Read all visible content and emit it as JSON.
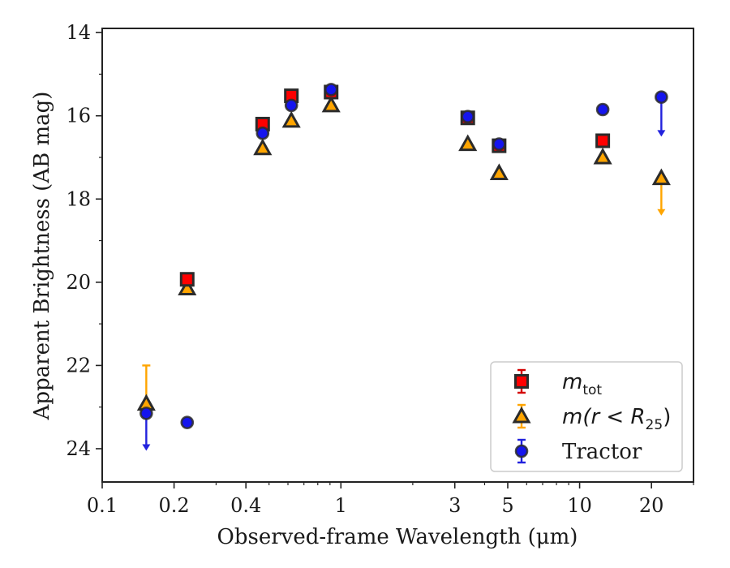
{
  "chart_data": {
    "type": "scatter",
    "xlabel": "Observed-frame Wavelength (μm)",
    "ylabel": "Apparent Brightness (AB mag)",
    "xscale": "log",
    "xlim": [
      0.1,
      30
    ],
    "ylim": [
      24.8,
      13.9
    ],
    "y_inverted": true,
    "xticks": [
      {
        "value": 0.1,
        "label": "0.1"
      },
      {
        "value": 0.2,
        "label": "0.2"
      },
      {
        "value": 0.4,
        "label": "0.4"
      },
      {
        "value": 1,
        "label": "1"
      },
      {
        "value": 3,
        "label": "3"
      },
      {
        "value": 5,
        "label": "5"
      },
      {
        "value": 10,
        "label": "10"
      },
      {
        "value": 20,
        "label": "20"
      }
    ],
    "yticks": [
      {
        "value": 14,
        "label": "14"
      },
      {
        "value": 16,
        "label": "16"
      },
      {
        "value": 18,
        "label": "18"
      },
      {
        "value": 20,
        "label": "20"
      },
      {
        "value": 22,
        "label": "22"
      },
      {
        "value": 24,
        "label": "24"
      }
    ],
    "legend_position": "lower-right",
    "series": [
      {
        "key": "m_tot",
        "name": "m_tot",
        "legend_main": "m",
        "legend_sub": "tot",
        "marker": "square",
        "fill": "#ff0000",
        "edge": "#2b2b2b",
        "errcolor": "#d40000",
        "points": [
          {
            "x": 0.227,
            "y": 19.93
          },
          {
            "x": 0.47,
            "y": 16.2
          },
          {
            "x": 0.62,
            "y": 15.52
          },
          {
            "x": 0.91,
            "y": 15.43
          },
          {
            "x": 3.4,
            "y": 16.05
          },
          {
            "x": 4.6,
            "y": 16.72
          },
          {
            "x": 12.5,
            "y": 16.6
          }
        ]
      },
      {
        "key": "m_r25",
        "name": "m(r < R_25)",
        "legend_main": "m(r < R",
        "legend_sub": "25",
        "legend_tail": ")",
        "marker": "triangle",
        "fill": "#ffa500",
        "edge": "#2b2b2b",
        "errcolor": "#ffa500",
        "points": [
          {
            "x": 0.153,
            "y": 22.92,
            "yerr_low": 22.0
          },
          {
            "x": 0.227,
            "y": 20.15
          },
          {
            "x": 0.47,
            "y": 16.78
          },
          {
            "x": 0.62,
            "y": 16.12
          },
          {
            "x": 0.91,
            "y": 15.75
          },
          {
            "x": 3.4,
            "y": 16.68
          },
          {
            "x": 4.6,
            "y": 17.38
          },
          {
            "x": 12.5,
            "y": 17.0
          },
          {
            "x": 22.0,
            "y": 17.5,
            "upper_limit_to": 18.4
          }
        ]
      },
      {
        "key": "tractor",
        "name": "Tractor",
        "legend_main": "Tractor",
        "marker": "circle",
        "fill": "#1515ee",
        "edge": "#2b2b2b",
        "errcolor": "#2222dd",
        "points": [
          {
            "x": 0.153,
            "y": 23.15,
            "upper_limit_to": 24.05
          },
          {
            "x": 0.227,
            "y": 23.37
          },
          {
            "x": 0.47,
            "y": 16.42
          },
          {
            "x": 0.62,
            "y": 15.75
          },
          {
            "x": 0.91,
            "y": 15.37
          },
          {
            "x": 3.4,
            "y": 16.02
          },
          {
            "x": 4.6,
            "y": 16.68
          },
          {
            "x": 12.5,
            "y": 15.85
          },
          {
            "x": 22.0,
            "y": 15.55,
            "upper_limit_to": 16.5
          }
        ]
      }
    ]
  }
}
